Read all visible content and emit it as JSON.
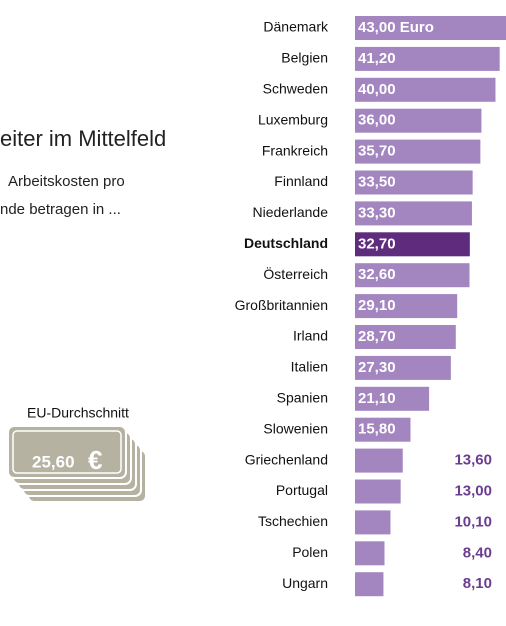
{
  "chart_data": {
    "type": "bar",
    "title": "eiter im Mittelfeld",
    "subtitle": [
      "Arbeitskosten pro",
      "nde betragen in ..."
    ],
    "categories": [
      "Dänemark",
      "Belgien",
      "Schweden",
      "Luxemburg",
      "Frankreich",
      "Finnland",
      "Niederlande",
      "Deutschland",
      "Österreich",
      "Großbritannien",
      "Irland",
      "Italien",
      "Spanien",
      "Slowenien",
      "Griechenland",
      "Portugal",
      "Tschechien",
      "Polen",
      "Ungarn"
    ],
    "values": [
      43.0,
      41.2,
      40.0,
      36.0,
      35.7,
      33.5,
      33.3,
      32.7,
      32.6,
      29.1,
      28.7,
      27.3,
      21.1,
      15.8,
      13.6,
      13.0,
      10.1,
      8.4,
      8.1
    ],
    "value_labels": [
      "43,00 Euro",
      "41,20",
      "40,00",
      "36,00",
      "35,70",
      "33,50",
      "33,30",
      "32,70",
      "32,60",
      "29,10",
      "28,70",
      "27,30",
      "21,10",
      "15,80",
      "13,60",
      "13,00",
      "10,10",
      "8,40",
      "8,10"
    ],
    "color": "#a385c0",
    "colors": [
      "#a385c0",
      "#a385c0",
      "#a385c0",
      "#a385c0",
      "#a385c0",
      "#a385c0",
      "#a385c0",
      "#5e2b7d",
      "#a385c0",
      "#a385c0",
      "#a385c0",
      "#a385c0",
      "#a385c0",
      "#a385c0",
      "#a385c0",
      "#a385c0",
      "#a385c0",
      "#a385c0",
      "#a385c0"
    ],
    "eu_average": {
      "label": "EU-Durchschnitt",
      "value": 25.6,
      "value_label": "25,60",
      "currency": "€"
    }
  }
}
